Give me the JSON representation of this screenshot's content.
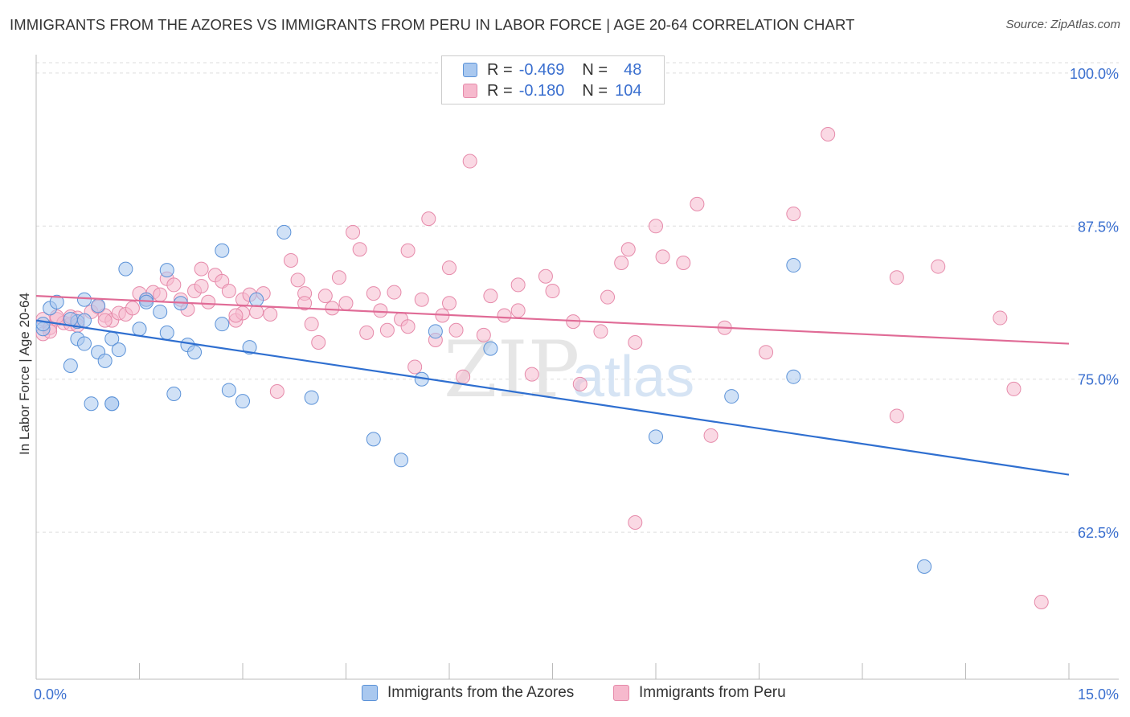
{
  "title": "IMMIGRANTS FROM THE AZORES VS IMMIGRANTS FROM PERU IN LABOR FORCE | AGE 20-64 CORRELATION CHART",
  "source": "Source: ZipAtlas.com",
  "watermark": {
    "zip": "ZIP",
    "atlas": "atlas"
  },
  "legend_top": {
    "rows": [
      {
        "r_label": "R =",
        "r_value": "-0.469",
        "n_label": "N =",
        "n_value": "48"
      },
      {
        "r_label": "R =",
        "r_value": "-0.180",
        "n_label": "N =",
        "n_value": "104"
      }
    ]
  },
  "legend_bottom": {
    "series_a": "Immigrants from the Azores",
    "series_b": "Immigrants from Peru"
  },
  "colors": {
    "blue_fill": "#a9c8ef",
    "blue_stroke": "#5b92d8",
    "blue_line": "#2f6fd0",
    "pink_fill": "#f6b9cd",
    "pink_stroke": "#e68aaa",
    "pink_line": "#e06b96",
    "axis_label": "#3a6fcf",
    "grid": "#dddddd"
  },
  "chart_data": {
    "type": "scatter",
    "title": "IMMIGRANTS FROM THE AZORES VS IMMIGRANTS FROM PERU IN LABOR FORCE | AGE 20-64 CORRELATION CHART",
    "xlabel": "",
    "ylabel": "In Labor Force | Age 20-64",
    "xlim": [
      0,
      15
    ],
    "ylim": [
      50.5,
      101.5
    ],
    "x_tick_labels": [
      "0.0%",
      "15.0%"
    ],
    "y_ticks": [
      62.5,
      75.0,
      87.5,
      100.0
    ],
    "y_tick_labels": [
      "62.5%",
      "75.0%",
      "87.5%",
      "100.0%"
    ],
    "grid": true,
    "legend_position": "top-center",
    "series": [
      {
        "name": "Immigrants from the Azores",
        "r": -0.469,
        "n": 48,
        "trend": {
          "x": [
            0,
            15
          ],
          "y": [
            79.8,
            67.2
          ]
        },
        "points": [
          [
            0.1,
            79.1
          ],
          [
            0.2,
            80.8
          ],
          [
            0.3,
            81.3
          ],
          [
            0.5,
            76.1
          ],
          [
            0.6,
            79.7
          ],
          [
            0.6,
            78.3
          ],
          [
            0.7,
            81.5
          ],
          [
            0.7,
            77.9
          ],
          [
            0.7,
            79.8
          ],
          [
            0.8,
            73.0
          ],
          [
            0.9,
            81.0
          ],
          [
            0.9,
            77.2
          ],
          [
            1.0,
            76.5
          ],
          [
            1.1,
            73.0
          ],
          [
            1.1,
            78.3
          ],
          [
            1.2,
            77.4
          ],
          [
            1.3,
            84.0
          ],
          [
            1.5,
            79.1
          ],
          [
            1.6,
            81.5
          ],
          [
            1.6,
            81.3
          ],
          [
            1.8,
            80.5
          ],
          [
            1.9,
            78.8
          ],
          [
            1.9,
            83.9
          ],
          [
            2.0,
            73.8
          ],
          [
            2.1,
            81.2
          ],
          [
            2.2,
            77.8
          ],
          [
            2.3,
            77.2
          ],
          [
            2.7,
            85.5
          ],
          [
            2.7,
            79.5
          ],
          [
            2.8,
            74.1
          ],
          [
            3.0,
            73.2
          ],
          [
            3.1,
            77.6
          ],
          [
            3.2,
            81.5
          ],
          [
            3.6,
            87.0
          ],
          [
            4.0,
            73.5
          ],
          [
            4.9,
            70.1
          ],
          [
            5.3,
            68.4
          ],
          [
            5.6,
            75.0
          ],
          [
            5.8,
            78.9
          ],
          [
            6.6,
            77.5
          ],
          [
            9.0,
            70.3
          ],
          [
            10.1,
            73.6
          ],
          [
            11.0,
            84.3
          ],
          [
            11.0,
            75.2
          ],
          [
            12.9,
            59.7
          ],
          [
            0.1,
            79.5
          ],
          [
            1.1,
            73.0
          ],
          [
            0.5,
            79.9
          ]
        ]
      },
      {
        "name": "Immigrants from Peru",
        "r": -0.18,
        "n": 104,
        "trend": {
          "x": [
            0,
            15
          ],
          "y": [
            81.8,
            77.9
          ]
        },
        "points": [
          [
            0.1,
            79.9
          ],
          [
            0.1,
            78.7
          ],
          [
            0.2,
            79.2
          ],
          [
            0.3,
            79.9
          ],
          [
            0.4,
            79.6
          ],
          [
            0.5,
            79.5
          ],
          [
            0.5,
            80.1
          ],
          [
            0.6,
            80.0
          ],
          [
            0.8,
            80.5
          ],
          [
            0.9,
            80.9
          ],
          [
            1.0,
            80.2
          ],
          [
            1.1,
            79.8
          ],
          [
            1.2,
            80.4
          ],
          [
            1.3,
            80.3
          ],
          [
            1.5,
            82.0
          ],
          [
            1.6,
            81.5
          ],
          [
            1.7,
            82.1
          ],
          [
            1.8,
            81.9
          ],
          [
            1.9,
            83.2
          ],
          [
            2.0,
            82.7
          ],
          [
            2.1,
            81.5
          ],
          [
            2.2,
            80.7
          ],
          [
            2.3,
            82.2
          ],
          [
            2.4,
            82.6
          ],
          [
            2.5,
            81.3
          ],
          [
            2.6,
            83.5
          ],
          [
            2.7,
            83.0
          ],
          [
            2.8,
            82.2
          ],
          [
            2.9,
            79.8
          ],
          [
            3.0,
            81.5
          ],
          [
            3.1,
            81.9
          ],
          [
            3.2,
            80.5
          ],
          [
            3.3,
            82.0
          ],
          [
            3.4,
            80.3
          ],
          [
            3.5,
            74.0
          ],
          [
            3.7,
            84.7
          ],
          [
            3.8,
            83.1
          ],
          [
            3.9,
            82.0
          ],
          [
            4.0,
            79.5
          ],
          [
            4.1,
            78.0
          ],
          [
            4.2,
            81.8
          ],
          [
            4.3,
            80.8
          ],
          [
            4.4,
            83.3
          ],
          [
            4.6,
            87.0
          ],
          [
            4.7,
            85.6
          ],
          [
            4.8,
            78.8
          ],
          [
            4.9,
            82.0
          ],
          [
            5.0,
            80.6
          ],
          [
            5.1,
            79.0
          ],
          [
            5.2,
            82.1
          ],
          [
            5.3,
            79.9
          ],
          [
            5.4,
            85.5
          ],
          [
            5.5,
            76.0
          ],
          [
            5.6,
            81.5
          ],
          [
            5.7,
            88.1
          ],
          [
            5.8,
            78.2
          ],
          [
            5.9,
            80.2
          ],
          [
            6.0,
            81.2
          ],
          [
            6.1,
            79.0
          ],
          [
            6.2,
            75.2
          ],
          [
            6.3,
            92.8
          ],
          [
            6.5,
            78.6
          ],
          [
            6.6,
            81.8
          ],
          [
            6.8,
            80.2
          ],
          [
            7.0,
            82.7
          ],
          [
            7.2,
            75.4
          ],
          [
            7.4,
            83.4
          ],
          [
            7.5,
            82.2
          ],
          [
            7.8,
            79.7
          ],
          [
            7.9,
            74.6
          ],
          [
            8.2,
            78.9
          ],
          [
            8.3,
            81.7
          ],
          [
            8.5,
            84.5
          ],
          [
            8.6,
            85.6
          ],
          [
            8.7,
            78.0
          ],
          [
            9.0,
            87.5
          ],
          [
            9.1,
            85.0
          ],
          [
            9.4,
            84.5
          ],
          [
            9.6,
            89.3
          ],
          [
            9.8,
            70.4
          ],
          [
            10.0,
            79.2
          ],
          [
            10.6,
            77.2
          ],
          [
            11.0,
            88.5
          ],
          [
            11.5,
            95.0
          ],
          [
            12.5,
            83.3
          ],
          [
            13.1,
            84.2
          ],
          [
            14.0,
            80.0
          ],
          [
            14.2,
            74.2
          ],
          [
            14.6,
            56.8
          ],
          [
            12.5,
            72.0
          ],
          [
            7.0,
            80.6
          ],
          [
            3.0,
            80.4
          ],
          [
            2.4,
            84.0
          ],
          [
            1.4,
            80.8
          ],
          [
            1.0,
            79.8
          ],
          [
            0.6,
            79.4
          ],
          [
            0.3,
            80.1
          ],
          [
            0.2,
            78.9
          ],
          [
            4.5,
            81.2
          ],
          [
            8.7,
            63.3
          ],
          [
            6.0,
            84.1
          ],
          [
            5.4,
            79.3
          ],
          [
            3.9,
            81.2
          ],
          [
            2.9,
            80.2
          ]
        ]
      }
    ]
  }
}
